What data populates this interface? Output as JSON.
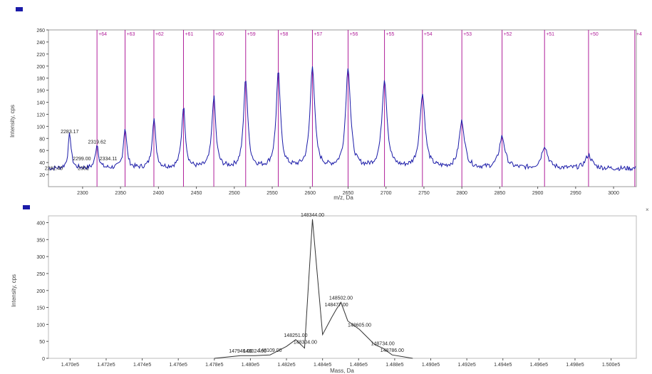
{
  "chart_data": [
    {
      "type": "line",
      "xlabel": "m/z, Da",
      "ylabel": "Intensity, cps",
      "xlim": [
        2255,
        3030
      ],
      "ylim": [
        0,
        260
      ],
      "x_ticks": [
        "2300",
        "2350",
        "2400",
        "2450",
        "2500",
        "2550",
        "2600",
        "2650",
        "2700",
        "2750",
        "2800",
        "2850",
        "2900",
        "2950",
        "3000"
      ],
      "y_ticks": [
        "20",
        "40",
        "60",
        "80",
        "100",
        "120",
        "140",
        "160",
        "180",
        "200",
        "220",
        "240",
        "260"
      ],
      "series_color": "#1a1aa8",
      "marker_color": "#b0209a",
      "charge_markers": [
        {
          "label": "+64",
          "x": 2319
        },
        {
          "label": "+63",
          "x": 2356
        },
        {
          "label": "+62",
          "x": 2394
        },
        {
          "label": "+61",
          "x": 2433
        },
        {
          "label": "+60",
          "x": 2473
        },
        {
          "label": "+59",
          "x": 2515
        },
        {
          "label": "+58",
          "x": 2558
        },
        {
          "label": "+57",
          "x": 2603
        },
        {
          "label": "+56",
          "x": 2650
        },
        {
          "label": "+55",
          "x": 2698
        },
        {
          "label": "+54",
          "x": 2748
        },
        {
          "label": "+53",
          "x": 2800
        },
        {
          "label": "+52",
          "x": 2853
        },
        {
          "label": "+51",
          "x": 2909
        },
        {
          "label": "+50",
          "x": 2967
        },
        {
          "label": "+4",
          "x": 3028
        }
      ],
      "peaks": [
        {
          "x": 2283,
          "y": 85
        },
        {
          "x": 2319,
          "y": 68
        },
        {
          "x": 2356,
          "y": 95
        },
        {
          "x": 2394,
          "y": 110
        },
        {
          "x": 2433,
          "y": 130
        },
        {
          "x": 2473,
          "y": 145
        },
        {
          "x": 2515,
          "y": 175
        },
        {
          "x": 2558,
          "y": 185
        },
        {
          "x": 2603,
          "y": 198
        },
        {
          "x": 2650,
          "y": 195
        },
        {
          "x": 2698,
          "y": 175
        },
        {
          "x": 2748,
          "y": 150
        },
        {
          "x": 2800,
          "y": 105
        },
        {
          "x": 2853,
          "y": 80
        },
        {
          "x": 2909,
          "y": 65
        },
        {
          "x": 2967,
          "y": 50
        }
      ],
      "annotations": [
        {
          "text": "2283.17",
          "x": 2283,
          "y": 85
        },
        {
          "text": "2319.62",
          "x": 2319,
          "y": 68
        },
        {
          "text": "2299.00",
          "x": 2299,
          "y": 40
        },
        {
          "text": "2334.11",
          "x": 2334,
          "y": 40
        },
        {
          "text": "2262.40",
          "x": 2262,
          "y": 24
        },
        {
          "text": "2301",
          "x": 2301,
          "y": 24
        }
      ]
    },
    {
      "type": "line",
      "xlabel": "Mass, Da",
      "ylabel": "Intensity, cps",
      "xlim": [
        1.4688,
        1.5014
      ],
      "ylim": [
        0,
        420
      ],
      "x_ticks": [
        "1.470e5",
        "1.472e5",
        "1.474e5",
        "1.476e5",
        "1.478e5",
        "1.480e5",
        "1.482e5",
        "1.484e5",
        "1.486e5",
        "1.488e5",
        "1.490e5",
        "1.492e5",
        "1.494e5",
        "1.496e5",
        "1.498e5",
        "1.500e5"
      ],
      "y_ticks": [
        "0",
        "50",
        "100",
        "150",
        "200",
        "250",
        "300",
        "350",
        "400"
      ],
      "series_color": "#333333",
      "points": [
        {
          "x": 147800,
          "y": 0
        },
        {
          "x": 147946,
          "y": 8
        },
        {
          "x": 148024,
          "y": 8
        },
        {
          "x": 148109,
          "y": 10
        },
        {
          "x": 148200,
          "y": 35
        },
        {
          "x": 148251,
          "y": 55
        },
        {
          "x": 148300,
          "y": 30
        },
        {
          "x": 148344,
          "y": 410
        },
        {
          "x": 148400,
          "y": 70
        },
        {
          "x": 148450,
          "y": 120
        },
        {
          "x": 148477,
          "y": 145
        },
        {
          "x": 148502,
          "y": 165
        },
        {
          "x": 148540,
          "y": 110
        },
        {
          "x": 148605,
          "y": 85
        },
        {
          "x": 148690,
          "y": 40
        },
        {
          "x": 148734,
          "y": 30
        },
        {
          "x": 148786,
          "y": 10
        },
        {
          "x": 148900,
          "y": 0
        }
      ],
      "annotations": [
        {
          "text": "148344.00",
          "x": 148344,
          "y": 410
        },
        {
          "text": "148502.00",
          "x": 148502,
          "y": 165
        },
        {
          "text": "148477.00",
          "x": 148477,
          "y": 145
        },
        {
          "text": "148251.00",
          "x": 148251,
          "y": 55
        },
        {
          "text": "148304.00",
          "x": 148304,
          "y": 35
        },
        {
          "text": "148605.00",
          "x": 148605,
          "y": 85
        },
        {
          "text": "148734.00",
          "x": 148734,
          "y": 30
        },
        {
          "text": "148786.00",
          "x": 148786,
          "y": 10
        },
        {
          "text": "147946.00",
          "x": 147946,
          "y": 8
        },
        {
          "text": "148024.00",
          "x": 148024,
          "y": 8
        },
        {
          "text": "148109.00",
          "x": 148109,
          "y": 10
        }
      ]
    }
  ]
}
